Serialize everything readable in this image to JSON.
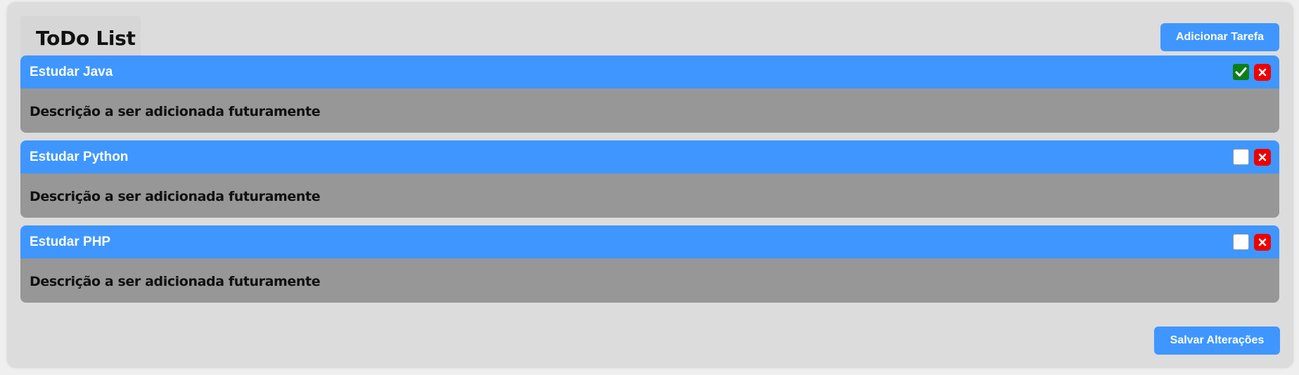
{
  "header": {
    "title": "ToDo List",
    "add_label": "Adicionar Tarefa"
  },
  "tasks": [
    {
      "title": "Estudar Java",
      "description": "Descrição a ser adicionada futuramente",
      "done": true
    },
    {
      "title": "Estudar Python",
      "description": "Descrição a ser adicionada futuramente",
      "done": false
    },
    {
      "title": "Estudar PHP",
      "description": "Descrição a ser adicionada futuramente",
      "done": false
    }
  ],
  "footer": {
    "save_label": "Salvar Alterações"
  },
  "icons": {
    "check": "checkmark-icon",
    "delete": "close-icon"
  },
  "colors": {
    "accent": "#3f96ff",
    "task_body": "#979797",
    "done": "#0e7f17",
    "delete": "#ee0000",
    "panel": "#dcdcdc"
  }
}
